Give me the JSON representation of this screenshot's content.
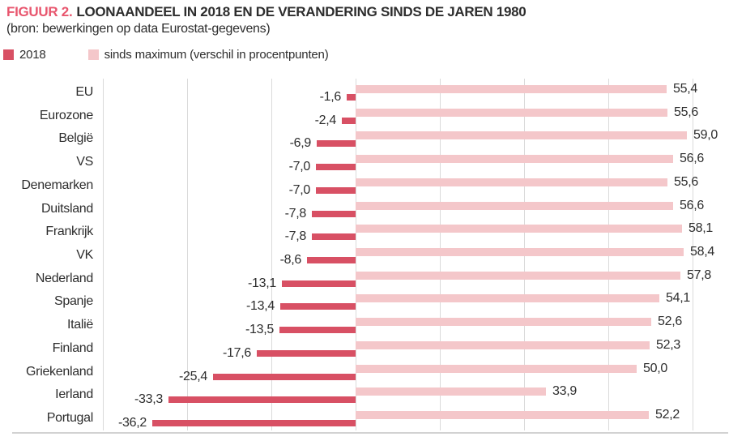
{
  "figure": {
    "label": "FIGUUR 2.",
    "title": "LOONAANDEEL IN 2018 EN DE VERANDERING SINDS DE JAREN 1980",
    "subtitle": "(bron: bewerkingen op data Eurostat-gegevens)"
  },
  "legend": {
    "items": [
      {
        "label": "2018",
        "color": "#d85064"
      },
      {
        "label": "sinds maximum (verschil in procentpunten)",
        "color": "#f4c7ca"
      }
    ]
  },
  "colors": {
    "figure_label_red": "#e8566e",
    "dark_bar": "#d85064",
    "light_bar": "#f4c7ca",
    "gridline": "#dadada",
    "text": "#2d2d2d"
  },
  "chart_data": {
    "type": "bar",
    "orientation": "horizontal",
    "title": "LOONAANDEEL IN 2018 EN DE VERANDERING SINDS DE JAREN 1980",
    "categories": [
      "EU",
      "Eurozone",
      "België",
      "VS",
      "Denemarken",
      "Duitsland",
      "Frankrijk",
      "VK",
      "Nederland",
      "Spanje",
      "Italië",
      "Finland",
      "Griekenland",
      "Ierland",
      "Portugal"
    ],
    "series": [
      {
        "name": "sinds maximum (verschil in procentpunten)",
        "color": "#f4c7ca",
        "values": [
          55.4,
          55.6,
          59.0,
          56.6,
          55.6,
          56.6,
          58.1,
          58.4,
          57.8,
          54.1,
          52.6,
          52.3,
          50.0,
          33.9,
          52.2
        ],
        "labels": [
          "55,4",
          "55,6",
          "59,0",
          "56,6",
          "55,6",
          "56,6",
          "58,1",
          "58,4",
          "57,8",
          "54,1",
          "52,6",
          "52,3",
          "50,0",
          "33,9",
          "52,2"
        ]
      },
      {
        "name": "2018",
        "color": "#d85064",
        "values": [
          -1.6,
          -2.4,
          -6.9,
          -7.0,
          -7.0,
          -7.8,
          -7.8,
          -8.6,
          -13.1,
          -13.4,
          -13.5,
          -17.6,
          -25.4,
          -33.3,
          -36.2
        ],
        "labels": [
          "-1,6",
          "-2,4",
          "-6,9",
          "-7,0",
          "-7,0",
          "-7,8",
          "-7,8",
          "-8,6",
          "-13,1",
          "-13,4",
          "-13,5",
          "-17,6",
          "-25,4",
          "-33,3",
          "-36,2"
        ]
      }
    ],
    "xlim": [
      -45,
      60
    ],
    "gridline_interval": 15,
    "grid": true,
    "xlabel": "",
    "ylabel": "",
    "legend_position": "top-left",
    "value_label_format": "comma-decimal, shown at bar ends"
  }
}
